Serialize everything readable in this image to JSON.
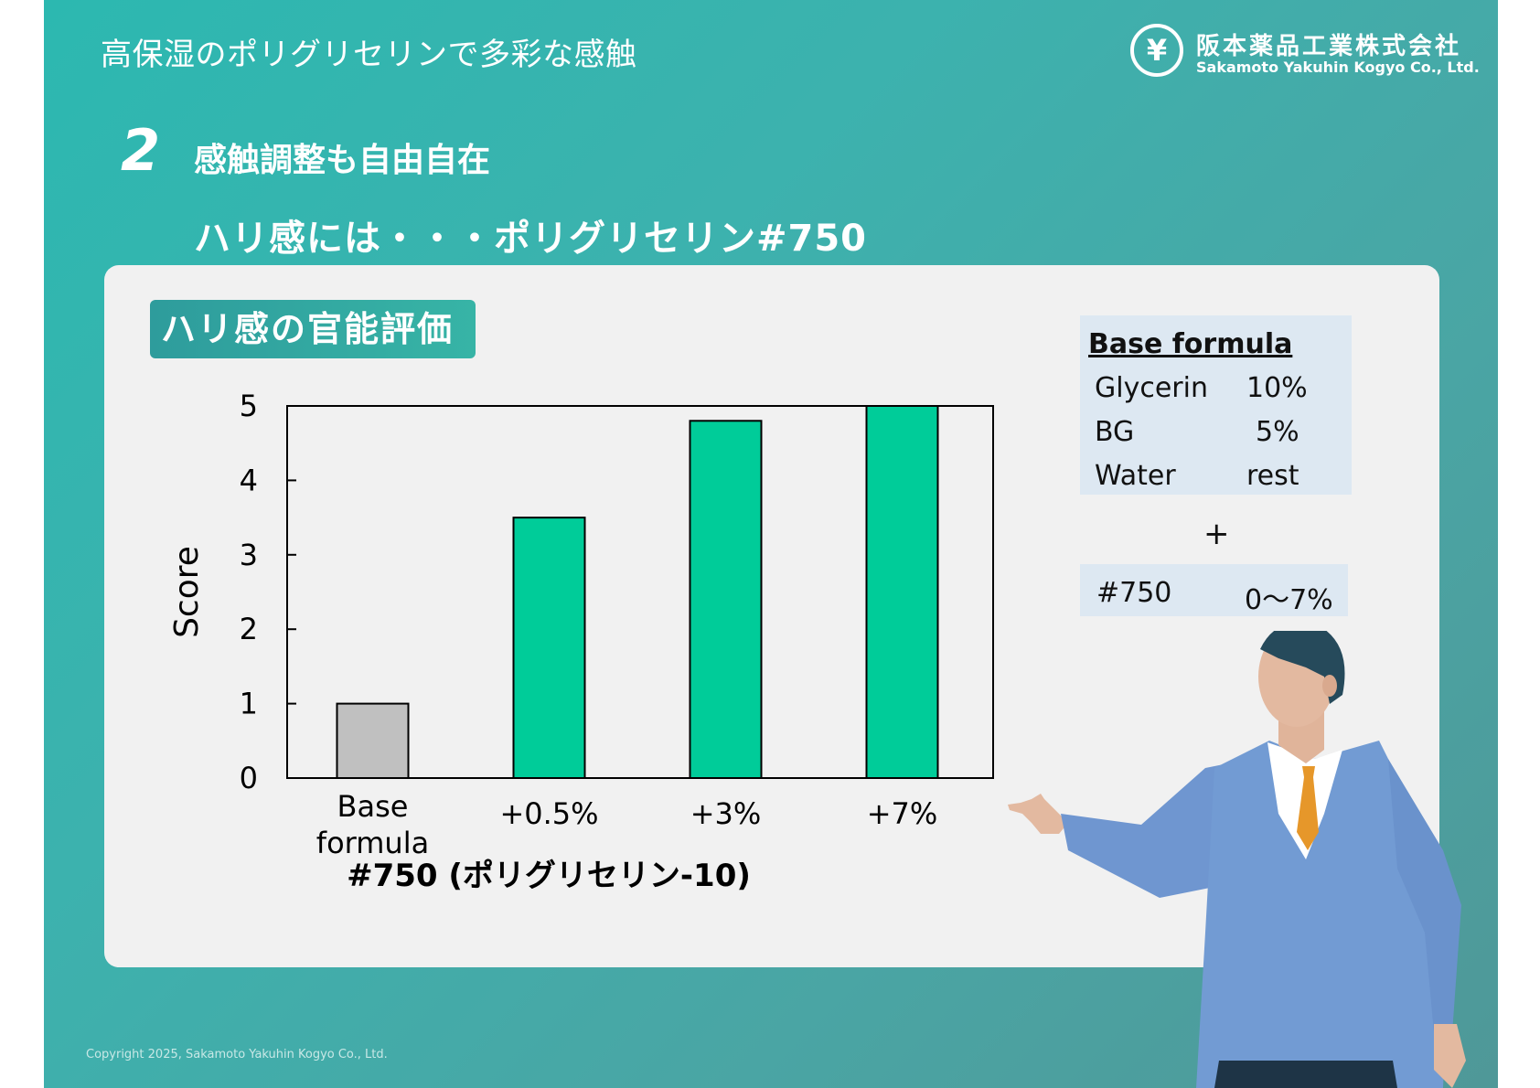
{
  "header": {
    "title": "高保湿のポリグリセリンで多彩な感触",
    "logo_jp": "阪本薬品工業株式会社",
    "logo_en": "Sakamoto Yakuhin Kogyo Co., Ltd."
  },
  "section": {
    "number": "2",
    "title": "感触調整も自由自在",
    "subtitle": "ハリ感には・・・ポリグリセリン#750"
  },
  "eval_label": "ハリ感の官能評価",
  "chart_data": {
    "type": "bar",
    "categories": [
      "Base\nformula",
      "+0.5%",
      "+3%",
      "+7%"
    ],
    "values": [
      1,
      3.5,
      4.8,
      5
    ],
    "bar_colors": [
      "#c0c0c0",
      "#00cc99",
      "#00cc99",
      "#00cc99"
    ],
    "ylabel": "Score",
    "xlabel": "#750 (ポリグリセリン-10)",
    "ylim": [
      0,
      5
    ],
    "yticks": [
      0,
      1,
      2,
      3,
      4,
      5
    ]
  },
  "formula": {
    "heading": "Base formula",
    "rows": [
      {
        "name": "Glycerin",
        "value": "10%"
      },
      {
        "name": "BG",
        "value": "5%"
      },
      {
        "name": "Water",
        "value": "rest"
      }
    ],
    "plus": "+",
    "additive": {
      "name": "#750",
      "range": "0～7%"
    }
  },
  "copyright": "Copyright 2025, Sakamoto Yakuhin Kogyo Co., Ltd.",
  "colors": {
    "accent": "#00cc99",
    "base_bar": "#c0c0c0",
    "background": "#3cb2ae",
    "panel": "#f1f1f1",
    "formula_bg": "#dde8f2"
  }
}
